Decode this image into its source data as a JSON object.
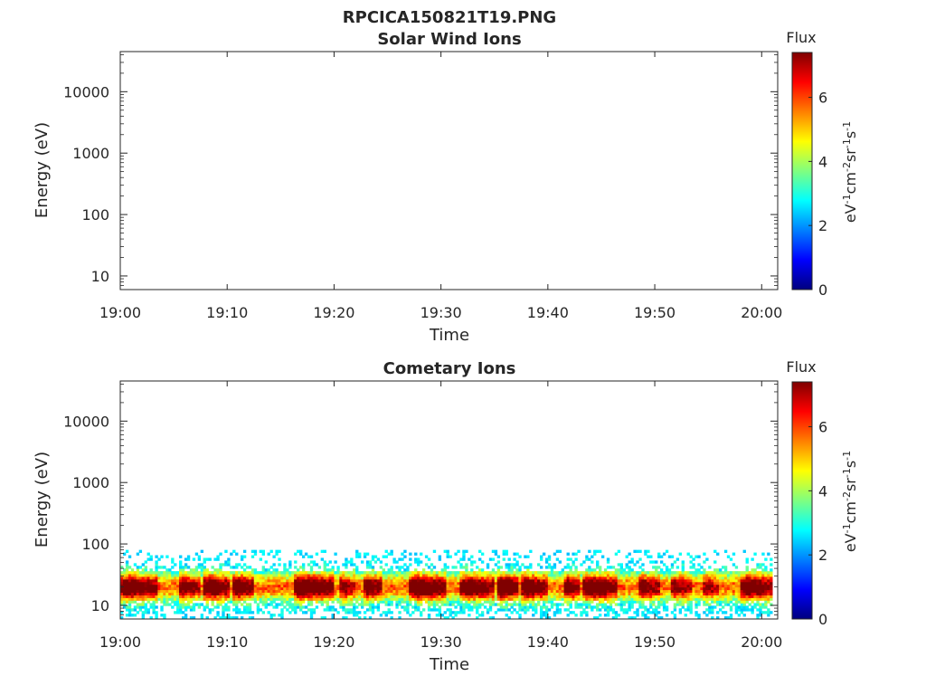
{
  "figure": {
    "title": "RPCICA150821T19.PNG"
  },
  "chart_data": [
    {
      "type": "heatmap",
      "title": "Solar Wind Ions",
      "xlabel": "Time",
      "ylabel": "Energy (eV)",
      "x_ticks": [
        "19:00",
        "19:10",
        "19:20",
        "19:30",
        "19:40",
        "19:50",
        "20:00"
      ],
      "x_range_minutes": [
        0,
        61.5
      ],
      "y_scale": "log",
      "y_ticks": [
        "10",
        "100",
        "1000",
        "10000"
      ],
      "y_range": [
        6,
        45000
      ],
      "colorbar": {
        "title": "Flux",
        "label": "eV-1 cm-2 sr-1 s-1",
        "ticks": [
          "0",
          "2",
          "4",
          "6"
        ],
        "range": [
          0,
          7.4
        ],
        "colormap": "jet"
      },
      "has_data": false
    },
    {
      "type": "heatmap",
      "title": "Cometary Ions",
      "xlabel": "Time",
      "ylabel": "Energy (eV)",
      "x_ticks": [
        "19:00",
        "19:10",
        "19:20",
        "19:30",
        "19:40",
        "19:50",
        "20:00"
      ],
      "x_range_minutes": [
        0,
        61.5
      ],
      "y_scale": "log",
      "y_ticks": [
        "10",
        "100",
        "1000",
        "10000"
      ],
      "y_range": [
        6,
        45000
      ],
      "colorbar": {
        "title": "Flux",
        "label": "eV-1 cm-2 sr-1 s-1",
        "ticks": [
          "0",
          "2",
          "4",
          "6"
        ],
        "range": [
          0,
          7.4
        ],
        "colormap": "jet"
      },
      "has_data": true,
      "energy_upper_cutoff_eV": 80,
      "peak_energy_eV": 20,
      "intense_bursts_minutes": [
        {
          "start": 0.0,
          "end": 3.5,
          "intensity": 6.6
        },
        {
          "start": 5.5,
          "end": 7.5,
          "intensity": 6.0
        },
        {
          "start": 7.8,
          "end": 10.2,
          "intensity": 6.8
        },
        {
          "start": 10.5,
          "end": 12.5,
          "intensity": 6.6
        },
        {
          "start": 16.3,
          "end": 20.0,
          "intensity": 7.0
        },
        {
          "start": 20.5,
          "end": 22.0,
          "intensity": 5.8
        },
        {
          "start": 22.8,
          "end": 24.5,
          "intensity": 6.4
        },
        {
          "start": 27.0,
          "end": 30.5,
          "intensity": 6.8
        },
        {
          "start": 31.8,
          "end": 35.0,
          "intensity": 6.6
        },
        {
          "start": 35.3,
          "end": 37.3,
          "intensity": 7.0
        },
        {
          "start": 37.5,
          "end": 40.0,
          "intensity": 6.6
        },
        {
          "start": 41.5,
          "end": 43.0,
          "intensity": 6.4
        },
        {
          "start": 43.3,
          "end": 46.5,
          "intensity": 6.8
        },
        {
          "start": 48.5,
          "end": 50.5,
          "intensity": 6.0
        },
        {
          "start": 51.5,
          "end": 53.5,
          "intensity": 5.8
        },
        {
          "start": 54.5,
          "end": 56.0,
          "intensity": 5.5
        },
        {
          "start": 58.0,
          "end": 61.0,
          "intensity": 6.6
        }
      ]
    }
  ]
}
